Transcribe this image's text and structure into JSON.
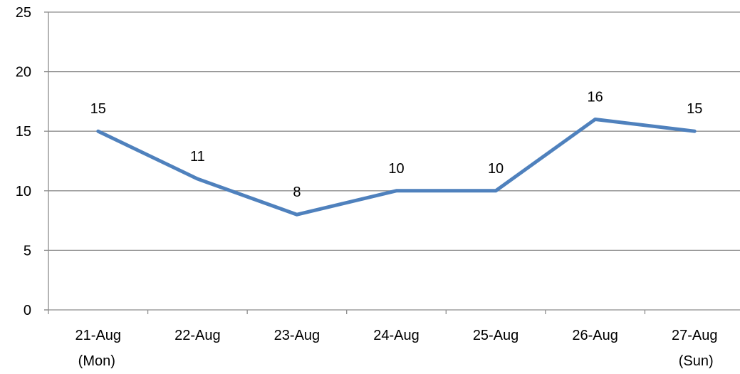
{
  "chart_data": {
    "type": "line",
    "categories": [
      [
        "21-Aug",
        "(Mon)"
      ],
      [
        "22-Aug"
      ],
      [
        "23-Aug"
      ],
      [
        "24-Aug"
      ],
      [
        "25-Aug"
      ],
      [
        "26-Aug"
      ],
      [
        "27-Aug",
        "(Sun)"
      ]
    ],
    "series": [
      {
        "values": [
          15,
          11,
          8,
          10,
          10,
          16,
          15
        ]
      }
    ],
    "ylim": [
      0,
      25
    ],
    "yticks": [
      0,
      5,
      10,
      15,
      20,
      25
    ],
    "grid": true,
    "data_labels": true,
    "line_color": "#4F81BD",
    "grid_color": "#8C8C8C",
    "axis_color": "#8C8C8C"
  }
}
